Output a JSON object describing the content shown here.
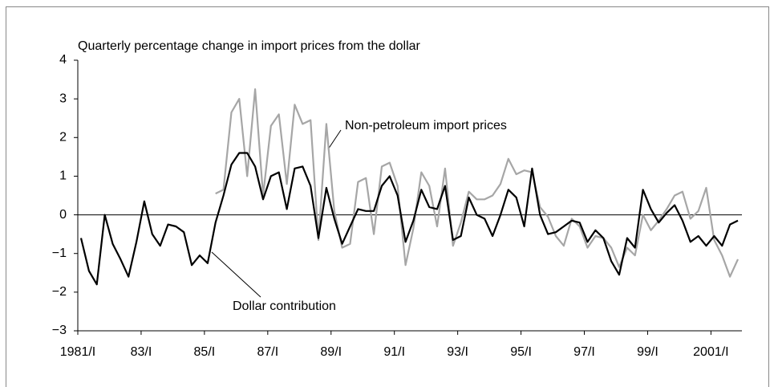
{
  "chart_data": {
    "type": "line",
    "title": "Quarterly percentage change in import prices from the dollar",
    "categories": [
      "1981/I",
      null,
      null,
      null,
      null,
      null,
      null,
      null,
      "83/I",
      null,
      null,
      null,
      null,
      null,
      null,
      null,
      "85/I",
      null,
      null,
      null,
      null,
      null,
      null,
      null,
      "87/I",
      null,
      null,
      null,
      null,
      null,
      null,
      null,
      "89/I",
      null,
      null,
      null,
      null,
      null,
      null,
      null,
      "91/I",
      null,
      null,
      null,
      null,
      null,
      null,
      null,
      "93/I",
      null,
      null,
      null,
      null,
      null,
      null,
      null,
      "95/I",
      null,
      null,
      null,
      null,
      null,
      null,
      null,
      "97/I",
      null,
      null,
      null,
      null,
      null,
      null,
      null,
      "99/I",
      null,
      null,
      null,
      null,
      null,
      null,
      null,
      "2001/I",
      null,
      null,
      null
    ],
    "series": [
      {
        "name": "Dollar contribution",
        "color": "#000000",
        "values": [
          -0.6,
          -1.45,
          -1.8,
          0.0,
          -0.75,
          -1.15,
          -1.6,
          -0.7,
          0.35,
          -0.5,
          -0.8,
          -0.25,
          -0.3,
          -0.45,
          -1.3,
          -1.05,
          -1.25,
          -0.2,
          0.5,
          1.3,
          1.6,
          1.6,
          1.25,
          0.4,
          1.0,
          1.1,
          0.15,
          1.2,
          1.25,
          0.75,
          -0.6,
          0.7,
          -0.1,
          -0.75,
          -0.3,
          0.15,
          0.1,
          0.1,
          0.75,
          1.0,
          0.5,
          -0.7,
          -0.15,
          0.65,
          0.2,
          0.15,
          0.75,
          -0.65,
          -0.55,
          0.45,
          0.0,
          -0.1,
          -0.55,
          0.0,
          0.65,
          0.45,
          -0.3,
          1.2,
          0.0,
          -0.5,
          -0.45,
          -0.3,
          -0.15,
          -0.2,
          -0.7,
          -0.4,
          -0.6,
          -1.2,
          -1.55,
          -0.6,
          -0.85,
          0.65,
          0.15,
          -0.2,
          0.05,
          0.25,
          -0.15,
          -0.7,
          -0.55,
          -0.8,
          -0.55,
          -0.8,
          -0.25,
          -0.15
        ]
      },
      {
        "name": "Non-petroleum import prices",
        "color": "#a6a6a6",
        "values": [
          null,
          null,
          null,
          null,
          null,
          null,
          null,
          null,
          null,
          null,
          null,
          null,
          null,
          null,
          null,
          null,
          null,
          0.55,
          0.65,
          2.65,
          3.0,
          1.0,
          3.25,
          0.5,
          2.3,
          2.6,
          0.8,
          2.85,
          2.35,
          2.45,
          -0.65,
          2.35,
          0.1,
          -0.85,
          -0.75,
          0.85,
          0.95,
          -0.5,
          1.25,
          1.35,
          0.75,
          -1.3,
          -0.35,
          1.1,
          0.75,
          -0.3,
          1.2,
          -0.8,
          -0.2,
          0.6,
          0.4,
          0.4,
          0.5,
          0.8,
          1.45,
          1.05,
          1.15,
          1.1,
          0.2,
          -0.05,
          -0.55,
          -0.8,
          -0.1,
          -0.3,
          -0.85,
          -0.55,
          -0.6,
          -0.85,
          -1.35,
          -0.85,
          -1.05,
          0.0,
          -0.4,
          -0.15,
          0.15,
          0.5,
          0.6,
          -0.1,
          0.1,
          0.7,
          -0.65,
          -1.05,
          -1.6,
          -1.15
        ]
      }
    ],
    "ylim": [
      -3,
      4
    ],
    "yticks": [
      {
        "value": -3,
        "label": "−3"
      },
      {
        "value": -2,
        "label": "−2"
      },
      {
        "value": -1,
        "label": "−1"
      },
      0,
      1,
      2,
      3,
      4
    ],
    "annotations": [
      "Non-petroleum import prices",
      "Dollar contribution"
    ]
  }
}
